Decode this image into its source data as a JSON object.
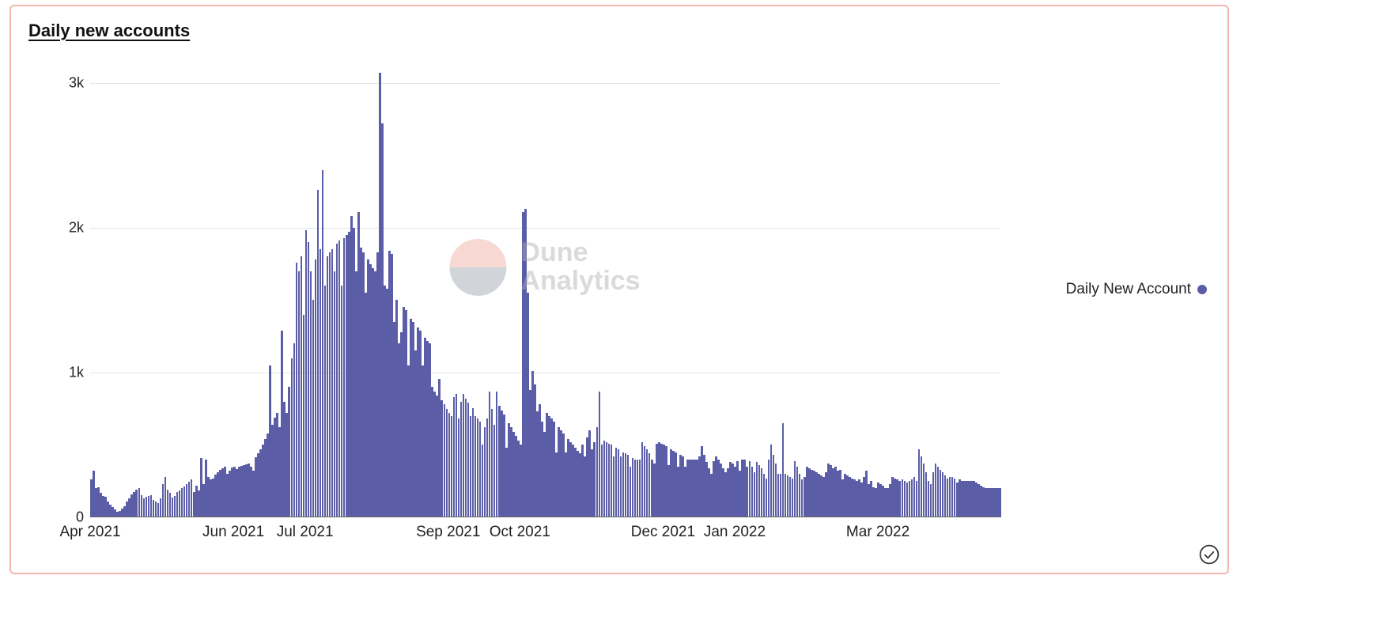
{
  "title": "Daily new accounts",
  "legend": {
    "label": "Daily New Account",
    "color": "#5b5ea6"
  },
  "watermark": {
    "line1": "Dune",
    "line2": "Analytics",
    "icon_top_color": "#f0a9a0",
    "icon_bottom_color": "#9aa4ad",
    "text_color": "#a9aeb3"
  },
  "colors": {
    "card_border": "#f5b5b0",
    "grid": "#e6e6e6",
    "axis": "#666666",
    "bar": "#5b5ea6",
    "text": "#222222",
    "background": "#ffffff"
  },
  "chart": {
    "type": "bar",
    "ylim": [
      0,
      3200
    ],
    "yticks": [
      {
        "value": 0,
        "label": "0"
      },
      {
        "value": 1000,
        "label": "1k"
      },
      {
        "value": 2000,
        "label": "2k"
      },
      {
        "value": 3000,
        "label": "3k"
      }
    ],
    "xticks": [
      {
        "index": 0,
        "label": "Apr 2021"
      },
      {
        "index": 60,
        "label": "Jun 2021"
      },
      {
        "index": 90,
        "label": "Jul 2021"
      },
      {
        "index": 150,
        "label": "Sep 2021"
      },
      {
        "index": 180,
        "label": "Oct 2021"
      },
      {
        "index": 240,
        "label": "Dec 2021"
      },
      {
        "index": 270,
        "label": "Jan 2022"
      },
      {
        "index": 330,
        "label": "Mar 2022"
      }
    ],
    "bar_color": "#5b5ea6",
    "grid_color": "#e6e6e6",
    "axis_color": "#666666",
    "label_fontsize": 19,
    "title_fontsize": 22,
    "values": [
      260,
      320,
      200,
      210,
      170,
      150,
      140,
      110,
      90,
      70,
      55,
      40,
      45,
      60,
      75,
      110,
      130,
      160,
      175,
      190,
      200,
      155,
      130,
      140,
      150,
      155,
      120,
      110,
      100,
      130,
      230,
      280,
      190,
      170,
      135,
      150,
      175,
      185,
      200,
      215,
      230,
      245,
      260,
      175,
      220,
      185,
      410,
      230,
      400,
      280,
      260,
      270,
      295,
      310,
      325,
      340,
      350,
      300,
      320,
      345,
      350,
      335,
      350,
      355,
      360,
      365,
      370,
      350,
      320,
      415,
      440,
      470,
      500,
      540,
      580,
      1050,
      640,
      690,
      720,
      620,
      1290,
      800,
      720,
      900,
      1100,
      1200,
      1760,
      1700,
      1800,
      1400,
      1980,
      1900,
      1700,
      1500,
      1780,
      2260,
      1850,
      2400,
      1600,
      1800,
      1830,
      1850,
      1700,
      1890,
      1910,
      1600,
      1930,
      1950,
      1970,
      2080,
      2000,
      1700,
      2110,
      1860,
      1830,
      1550,
      1780,
      1750,
      1720,
      1700,
      1830,
      3070,
      2720,
      1600,
      1580,
      1840,
      1820,
      1350,
      1500,
      1200,
      1280,
      1450,
      1430,
      1050,
      1370,
      1350,
      1150,
      1310,
      1290,
      1050,
      1240,
      1220,
      1200,
      900,
      870,
      840,
      955,
      810,
      780,
      750,
      720,
      700,
      830,
      850,
      685,
      800,
      850,
      820,
      790,
      700,
      755,
      700,
      680,
      660,
      500,
      620,
      680,
      870,
      750,
      640,
      870,
      770,
      740,
      710,
      480,
      650,
      620,
      590,
      560,
      530,
      500,
      2110,
      2130,
      1550,
      880,
      1010,
      920,
      730,
      780,
      660,
      590,
      720,
      700,
      680,
      660,
      450,
      620,
      600,
      580,
      450,
      540,
      520,
      500,
      480,
      460,
      440,
      500,
      420,
      550,
      600,
      470,
      520,
      620,
      870,
      500,
      530,
      520,
      510,
      500,
      420,
      480,
      470,
      420,
      450,
      440,
      430,
      350,
      410,
      400,
      400,
      400,
      520,
      490,
      470,
      440,
      400,
      370,
      510,
      520,
      510,
      500,
      490,
      360,
      470,
      460,
      450,
      350,
      430,
      420,
      350,
      400,
      400,
      400,
      400,
      400,
      420,
      490,
      430,
      380,
      340,
      300,
      390,
      420,
      400,
      370,
      340,
      310,
      340,
      380,
      370,
      350,
      390,
      320,
      400,
      400,
      350,
      390,
      350,
      310,
      380,
      360,
      340,
      300,
      270,
      400,
      500,
      430,
      370,
      300,
      300,
      650,
      300,
      290,
      280,
      270,
      390,
      350,
      300,
      260,
      280,
      350,
      340,
      330,
      320,
      310,
      300,
      290,
      280,
      310,
      370,
      360,
      340,
      350,
      320,
      330,
      260,
      300,
      290,
      280,
      270,
      260,
      250,
      260,
      240,
      280,
      320,
      230,
      250,
      210,
      200,
      240,
      230,
      220,
      200,
      200,
      230,
      280,
      270,
      260,
      250,
      260,
      250,
      240,
      250,
      260,
      280,
      250,
      470,
      420,
      370,
      310,
      250,
      230,
      310,
      370,
      350,
      330,
      310,
      290,
      270,
      280,
      280,
      270,
      240,
      260,
      250,
      250,
      250,
      250,
      250,
      250,
      240,
      230,
      220,
      210,
      200,
      200,
      200,
      200,
      200,
      200,
      200
    ]
  }
}
